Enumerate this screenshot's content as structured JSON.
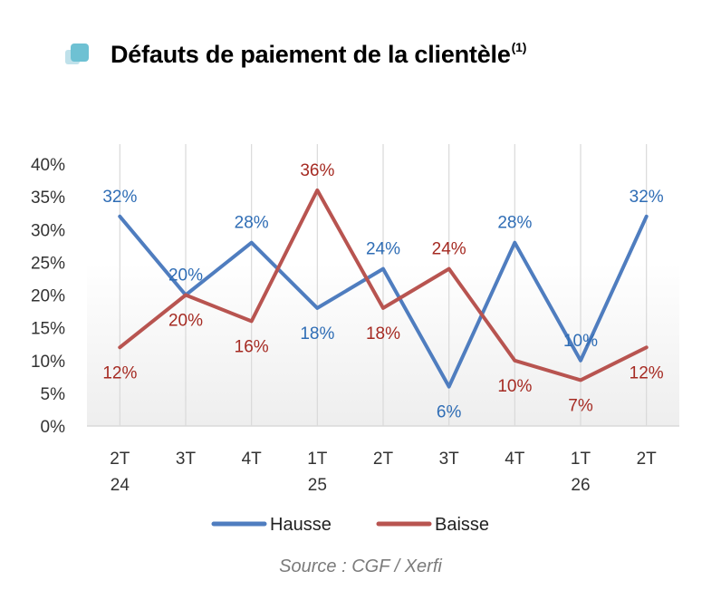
{
  "header": {
    "title": "Défauts de paiement de la clientèle",
    "title_sup": "(1)"
  },
  "source": "Source : CGF / Xerfi",
  "colors": {
    "hausse": "#4f7dbf",
    "baisse": "#b85450",
    "hausse_label": "#2f6db5",
    "baisse_label": "#a52a22",
    "axis_text": "#333333",
    "grid": "#d9d9d9",
    "icon_front": "#6ec1d3",
    "icon_back": "#bfe1ea"
  },
  "chart_data": {
    "type": "line",
    "title": "Défauts de paiement de la clientèle",
    "categories": [
      [
        "2T",
        "24"
      ],
      [
        "3T",
        ""
      ],
      [
        "4T",
        ""
      ],
      [
        "1T",
        "25"
      ],
      [
        "2T",
        ""
      ],
      [
        "3T",
        ""
      ],
      [
        "4T",
        ""
      ],
      [
        "1T",
        "26"
      ],
      [
        "2T",
        ""
      ]
    ],
    "series": [
      {
        "name": "Hausse",
        "values": [
          32,
          20,
          28,
          18,
          24,
          6,
          28,
          10,
          32
        ],
        "labels": [
          "32%",
          "20%",
          "28%",
          "18%",
          "24%",
          "6%",
          "28%",
          "10%",
          "32%"
        ]
      },
      {
        "name": "Baisse",
        "values": [
          12,
          20,
          16,
          36,
          18,
          24,
          10,
          7,
          12
        ],
        "labels": [
          "12%",
          "20%",
          "16%",
          "36%",
          "18%",
          "24%",
          "10%",
          "7%",
          "12%"
        ]
      }
    ],
    "yticks": [
      "0%",
      "5%",
      "10%",
      "15%",
      "20%",
      "25%",
      "30%",
      "35%",
      "40%"
    ],
    "ylim": [
      0,
      40
    ],
    "grid": "vertical",
    "legend_position": "bottom"
  }
}
